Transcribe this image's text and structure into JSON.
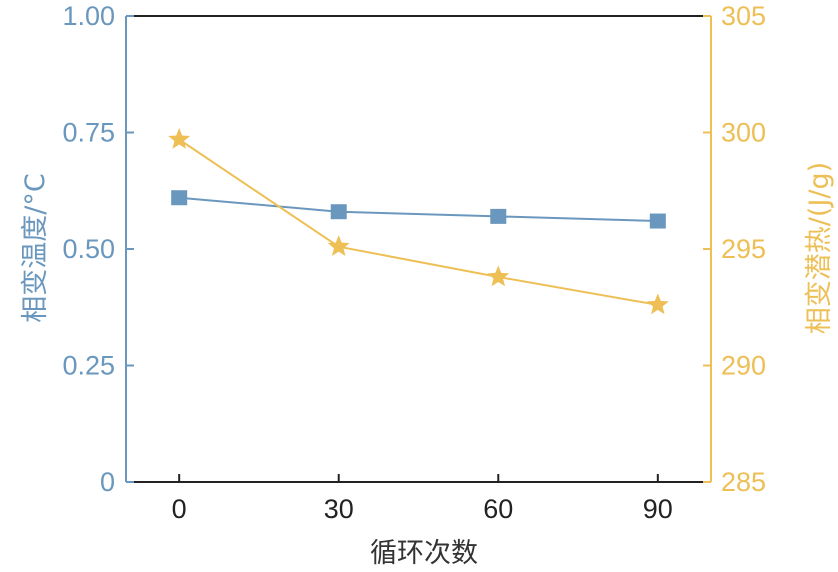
{
  "chart_data": {
    "type": "line",
    "xlabel": "循环次数",
    "x": [
      0,
      30,
      60,
      90
    ],
    "x_ticks": [
      "0",
      "30",
      "60",
      "90"
    ],
    "xlim": [
      -10,
      100
    ],
    "series": [
      {
        "name": "相变温度/°C",
        "axis": "left",
        "marker": "square",
        "color": "#6a97bd",
        "values": [
          0.61,
          0.58,
          0.57,
          0.56
        ]
      },
      {
        "name": "相变潜热/(J/g)",
        "axis": "right",
        "marker": "star",
        "color": "#edbf55",
        "values": [
          299.7,
          295.1,
          293.8,
          292.6
        ]
      }
    ],
    "left_axis": {
      "label": "相变温度/°C",
      "ylim": [
        0,
        1
      ],
      "ticks": [
        0,
        0.25,
        0.5,
        0.75,
        1
      ],
      "tick_labels": [
        "0",
        "0.25",
        "0.50",
        "0.75",
        "1.00"
      ],
      "color": "#6a97bd"
    },
    "right_axis": {
      "label": "相变潜热/(J/g)",
      "ylim": [
        285,
        305
      ],
      "ticks": [
        285,
        290,
        295,
        300,
        305
      ],
      "tick_labels": [
        "285",
        "290",
        "295",
        "300",
        "305"
      ],
      "color": "#edbf55"
    },
    "grid": false,
    "legend": "none"
  }
}
